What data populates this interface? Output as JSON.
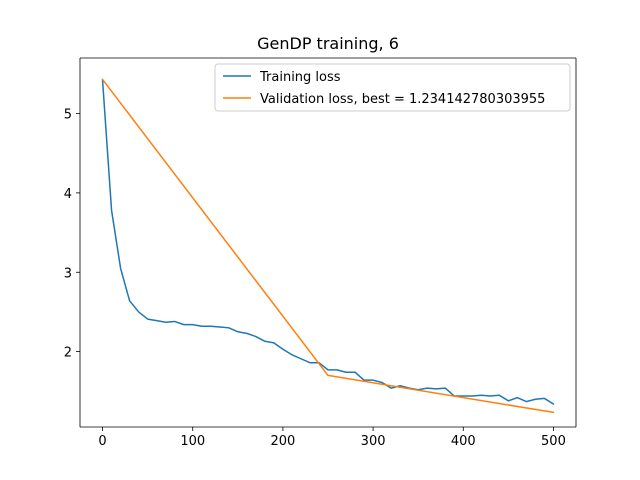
{
  "chart_data": {
    "type": "line",
    "title": "GenDP training, 6",
    "xlabel": "",
    "ylabel": "",
    "xlim": [
      -25,
      525
    ],
    "ylim": [
      1.05,
      5.7
    ],
    "xticks": [
      0,
      100,
      200,
      300,
      400,
      500
    ],
    "yticks": [
      2,
      3,
      4,
      5
    ],
    "grid": false,
    "legend_position": "upper right",
    "series": [
      {
        "name": "Training loss",
        "color": "#1f77b4",
        "x": [
          0,
          10,
          20,
          30,
          40,
          50,
          60,
          70,
          80,
          90,
          100,
          110,
          120,
          130,
          140,
          150,
          160,
          170,
          180,
          190,
          200,
          210,
          220,
          230,
          240,
          250,
          260,
          270,
          280,
          290,
          300,
          310,
          320,
          330,
          340,
          350,
          360,
          370,
          380,
          390,
          400,
          410,
          420,
          430,
          440,
          450,
          460,
          470,
          480,
          490,
          500
        ],
        "y": [
          5.42,
          3.78,
          3.05,
          2.64,
          2.5,
          2.41,
          2.39,
          2.37,
          2.38,
          2.34,
          2.34,
          2.32,
          2.32,
          2.31,
          2.3,
          2.25,
          2.23,
          2.19,
          2.13,
          2.11,
          2.03,
          1.96,
          1.91,
          1.86,
          1.86,
          1.77,
          1.77,
          1.74,
          1.74,
          1.64,
          1.64,
          1.61,
          1.54,
          1.57,
          1.54,
          1.52,
          1.54,
          1.53,
          1.54,
          1.44,
          1.44,
          1.44,
          1.45,
          1.44,
          1.45,
          1.38,
          1.42,
          1.37,
          1.4,
          1.41,
          1.34
        ]
      },
      {
        "name": "Validation loss, best = 1.234142780303955",
        "color": "#ff7f0e",
        "x": [
          0,
          250,
          500
        ],
        "y": [
          5.43,
          1.7,
          1.234142780303955
        ]
      }
    ]
  }
}
